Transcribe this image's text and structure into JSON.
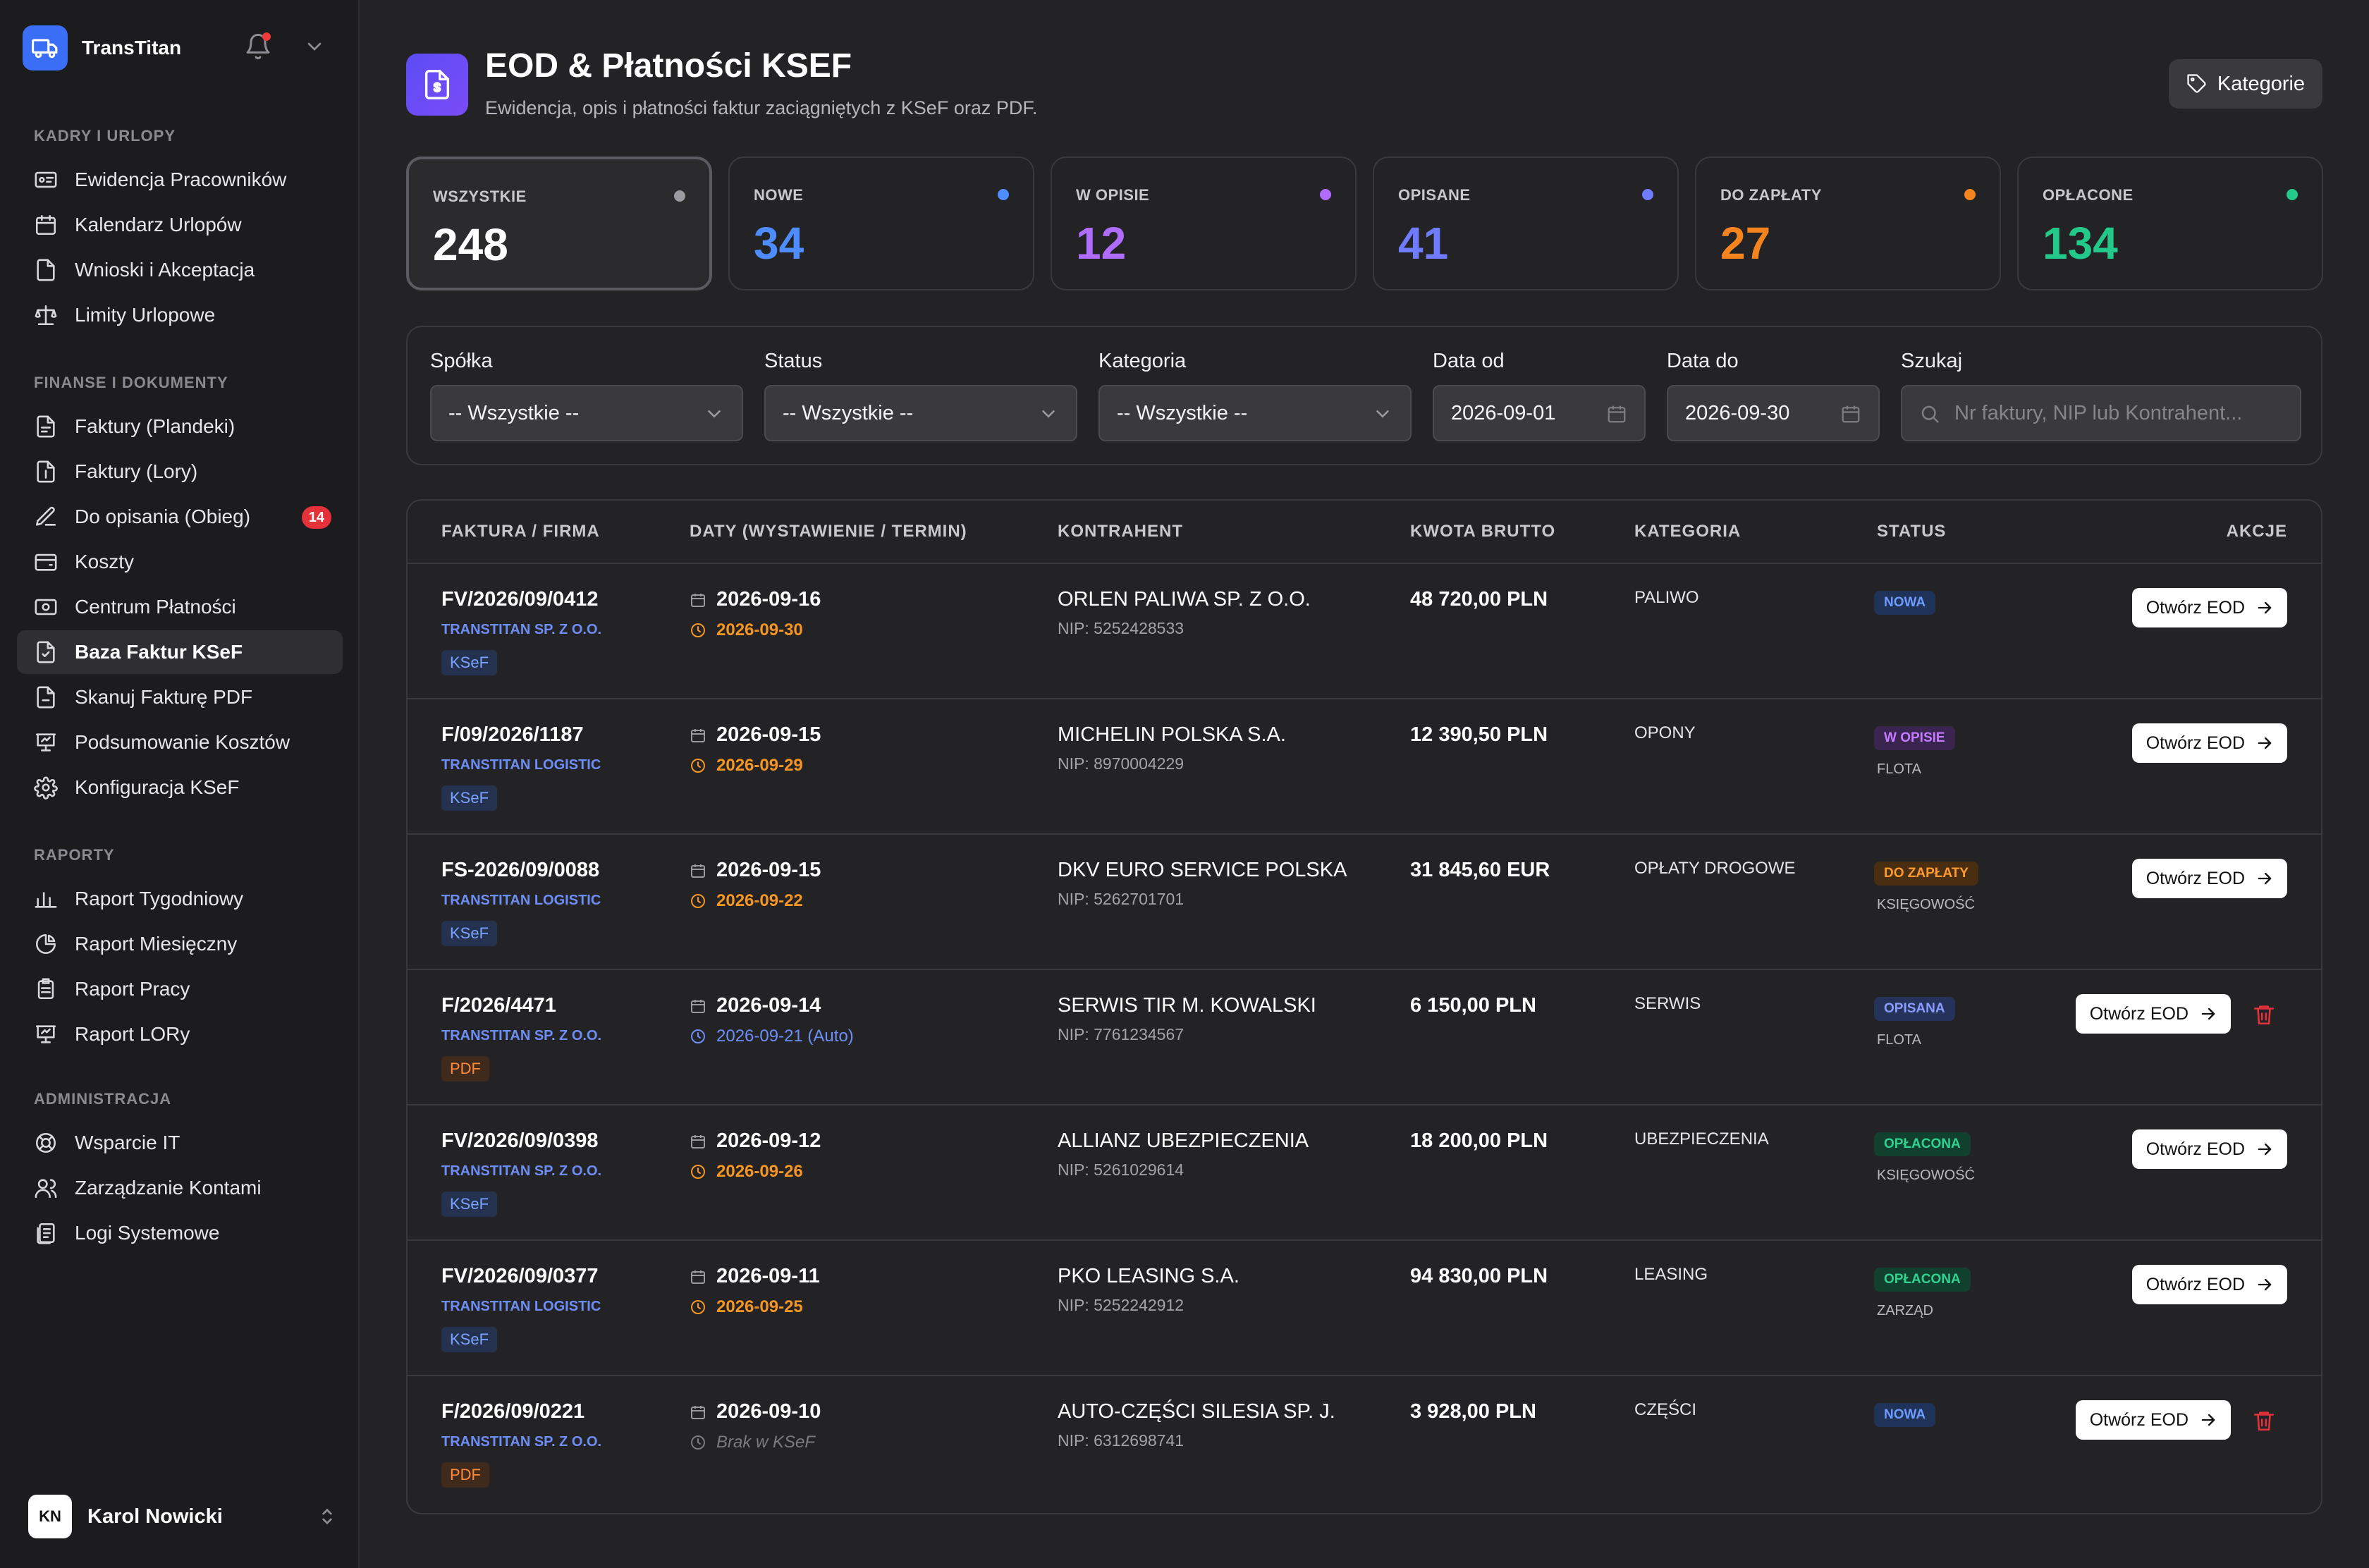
{
  "app": {
    "name": "TransTitan"
  },
  "sidebar": {
    "sections": [
      {
        "title": "KADRY I URLOPY",
        "items": [
          {
            "label": "Ewidencja Pracowników",
            "icon": "id-card-icon"
          },
          {
            "label": "Kalendarz Urlopów",
            "icon": "calendar-icon"
          },
          {
            "label": "Wnioski i Akceptacja",
            "icon": "document-icon"
          },
          {
            "label": "Limity Urlopowe",
            "icon": "scale-icon"
          }
        ]
      },
      {
        "title": "FINANSE I DOKUMENTY",
        "items": [
          {
            "label": "Faktury (Plandeki)",
            "icon": "invoice-icon"
          },
          {
            "label": "Faktury (Lory)",
            "icon": "invoice-dollar-icon"
          },
          {
            "label": "Do opisania (Obieg)",
            "icon": "edit-icon",
            "badge": "14"
          },
          {
            "label": "Koszty",
            "icon": "wallet-icon"
          },
          {
            "label": "Centrum Płatności",
            "icon": "payments-icon"
          },
          {
            "label": "Baza Faktur KSeF",
            "icon": "ksef-icon",
            "active": true
          },
          {
            "label": "Skanuj Fakturę PDF",
            "icon": "scan-pdf-icon"
          },
          {
            "label": "Podsumowanie Kosztów",
            "icon": "presentation-chart-icon"
          },
          {
            "label": "Konfiguracja KSeF",
            "icon": "gear-icon"
          }
        ]
      },
      {
        "title": "RAPORTY",
        "items": [
          {
            "label": "Raport Tygodniowy",
            "icon": "bar-chart-icon"
          },
          {
            "label": "Raport Miesięczny",
            "icon": "pie-chart-icon"
          },
          {
            "label": "Raport Pracy",
            "icon": "clipboard-icon"
          },
          {
            "label": "Raport LORy",
            "icon": "presentation-chart-icon"
          }
        ]
      },
      {
        "title": "ADMINISTRACJA",
        "items": [
          {
            "label": "Wsparcie IT",
            "icon": "lifebuoy-icon"
          },
          {
            "label": "Zarządzanie Kontami",
            "icon": "users-icon"
          },
          {
            "label": "Logi Systemowe",
            "icon": "logs-icon"
          }
        ]
      }
    ],
    "user": {
      "initials": "KN",
      "name": "Karol Nowicki"
    }
  },
  "header": {
    "title": "EOD & Płatności KSEF",
    "subtitle": "Ewidencja, opis i płatności faktur zaciągniętych z KSeF oraz PDF.",
    "categories_button": "Kategorie"
  },
  "stats": [
    {
      "label": "WSZYSTKIE",
      "value": "248",
      "color": "#ffffff",
      "dot": "#9a9aa0",
      "active": true
    },
    {
      "label": "NOWE",
      "value": "34",
      "color": "#4f8cff",
      "dot": "#4f8cff"
    },
    {
      "label": "W OPISIE",
      "value": "12",
      "color": "#b06cff",
      "dot": "#b06cff"
    },
    {
      "label": "OPISANE",
      "value": "41",
      "color": "#6f7cff",
      "dot": "#6f7cff"
    },
    {
      "label": "DO ZAPŁATY",
      "value": "27",
      "color": "#f5841f",
      "dot": "#f5841f"
    },
    {
      "label": "OPŁACONE",
      "value": "134",
      "color": "#22c98a",
      "dot": "#22c98a"
    }
  ],
  "filters": {
    "company": {
      "label": "Spółka",
      "value": "-- Wszystkie --"
    },
    "status": {
      "label": "Status",
      "value": "-- Wszystkie --"
    },
    "category": {
      "label": "Kategoria",
      "value": "-- Wszystkie --"
    },
    "date_from": {
      "label": "Data od",
      "value": "2026-09-01"
    },
    "date_to": {
      "label": "Data do",
      "value": "2026-09-30"
    },
    "search": {
      "label": "Szukaj",
      "placeholder": "Nr faktury, NIP lub Kontrahent..."
    }
  },
  "table": {
    "columns": [
      "FAKTURA / FIRMA",
      "DATY (WYSTAWIENIE / TERMIN)",
      "KONTRAHENT",
      "KWOTA BRUTTO",
      "KATEGORIA",
      "STATUS",
      "AKCJE"
    ],
    "open_label": "Otwórz EOD",
    "rows": [
      {
        "invoice": "FV/2026/09/0412",
        "company": "TRANSTITAN SP. Z O.O.",
        "source": "KSeF",
        "issued": "2026-09-16",
        "due": "2026-09-30",
        "due_style": "orange",
        "contractor": "ORLEN PALIWA SP. Z O.O.",
        "nip": "NIP: 5252428533",
        "amount": "48 720,00 PLN",
        "category": "PALIWO",
        "status": "NOWA",
        "status_class": "st-nowa",
        "status_sub": "",
        "deletable": false
      },
      {
        "invoice": "F/09/2026/1187",
        "company": "TRANSTITAN LOGISTIC",
        "source": "KSeF",
        "issued": "2026-09-15",
        "due": "2026-09-29",
        "due_style": "orange",
        "contractor": "MICHELIN POLSKA S.A.",
        "nip": "NIP: 8970004229",
        "amount": "12 390,50 PLN",
        "category": "OPONY",
        "status": "W OPISIE",
        "status_class": "st-wopisie",
        "status_sub": "FLOTA",
        "deletable": false
      },
      {
        "invoice": "FS-2026/09/0088",
        "company": "TRANSTITAN LOGISTIC",
        "source": "KSeF",
        "issued": "2026-09-15",
        "due": "2026-09-22",
        "due_style": "orange",
        "contractor": "DKV EURO SERVICE POLSKA",
        "nip": "NIP: 5262701701",
        "amount": "31 845,60 EUR",
        "category": "OPŁATY DROGOWE",
        "status": "DO ZAPŁATY",
        "status_class": "st-dozaplaty",
        "status_sub": "KSIĘGOWOŚĆ",
        "deletable": false
      },
      {
        "invoice": "F/2026/4471",
        "company": "TRANSTITAN SP. Z O.O.",
        "source": "PDF",
        "issued": "2026-09-14",
        "due": "2026-09-21 (Auto)",
        "due_style": "blue",
        "contractor": "SERWIS TIR M. KOWALSKI",
        "nip": "NIP: 7761234567",
        "amount": "6 150,00 PLN",
        "category": "SERWIS",
        "status": "OPISANA",
        "status_class": "st-opisana",
        "status_sub": "FLOTA",
        "deletable": true
      },
      {
        "invoice": "FV/2026/09/0398",
        "company": "TRANSTITAN SP. Z O.O.",
        "source": "KSeF",
        "issued": "2026-09-12",
        "due": "2026-09-26",
        "due_style": "orange",
        "contractor": "ALLIANZ UBEZPIECZENIA",
        "nip": "NIP: 5261029614",
        "amount": "18 200,00 PLN",
        "category": "UBEZPIECZENIA",
        "status": "OPŁACONA",
        "status_class": "st-oplacona",
        "status_sub": "KSIĘGOWOŚĆ",
        "deletable": false
      },
      {
        "invoice": "FV/2026/09/0377",
        "company": "TRANSTITAN LOGISTIC",
        "source": "KSeF",
        "issued": "2026-09-11",
        "due": "2026-09-25",
        "due_style": "orange",
        "contractor": "PKO LEASING S.A.",
        "nip": "NIP: 5252242912",
        "amount": "94 830,00 PLN",
        "category": "LEASING",
        "status": "OPŁACONA",
        "status_class": "st-oplacona",
        "status_sub": "ZARZĄD",
        "deletable": false
      },
      {
        "invoice": "F/2026/09/0221",
        "company": "TRANSTITAN SP. Z O.O.",
        "source": "PDF",
        "issued": "2026-09-10",
        "due": "Brak w KSeF",
        "due_style": "missing",
        "contractor": "AUTO-CZĘŚCI SILESIA SP. J.",
        "nip": "NIP: 6312698741",
        "amount": "3 928,00 PLN",
        "category": "CZĘŚCI",
        "status": "NOWA",
        "status_class": "st-nowa",
        "status_sub": "",
        "deletable": true
      }
    ]
  }
}
